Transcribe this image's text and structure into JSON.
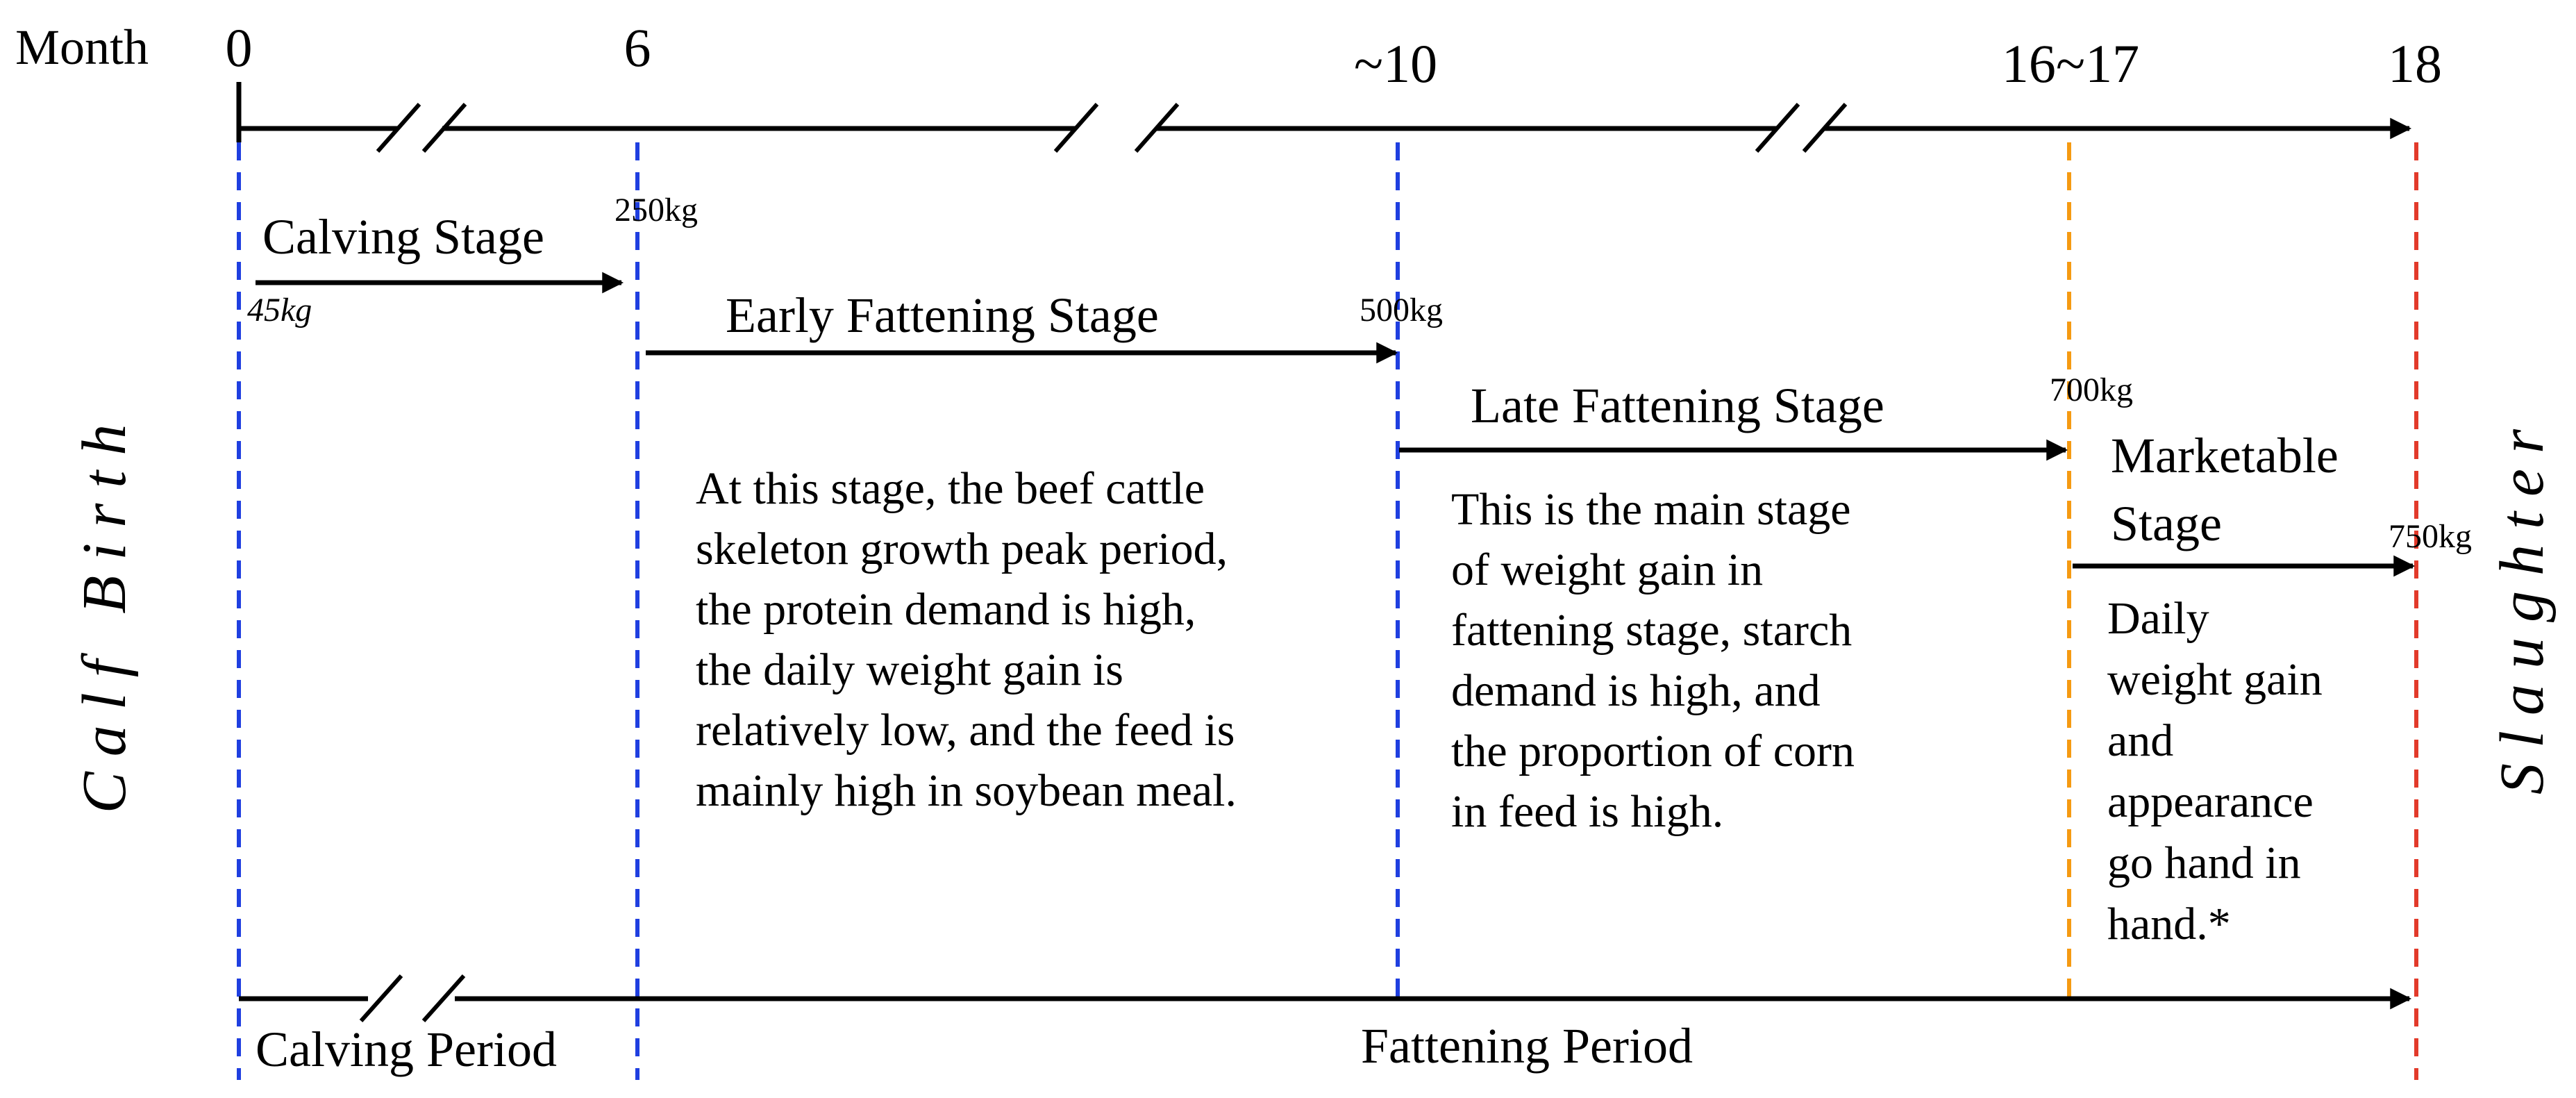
{
  "axis": {
    "label": "Month",
    "ticks": [
      "0",
      "6",
      "~10",
      "16~17",
      "18"
    ]
  },
  "stages": [
    {
      "label": "Calving Stage",
      "start_weight": "45kg",
      "end_weight": "250kg"
    },
    {
      "label": "Early Fattening Stage",
      "end_weight": "500kg"
    },
    {
      "label": "Late Fattening Stage",
      "end_weight": "700kg"
    },
    {
      "label_lines": [
        "Marketable",
        "Stage"
      ],
      "end_weight": "750kg"
    }
  ],
  "descriptions": {
    "early": [
      "At this stage, the beef cattle",
      "skeleton growth peak period,",
      "the protein demand is high,",
      "the daily weight gain is",
      "relatively low, and the feed is",
      "mainly high in soybean meal."
    ],
    "late": [
      "This is the main stage",
      "of weight gain in",
      "fattening stage, starch",
      "demand is high, and",
      "the proportion of corn",
      "in feed is high."
    ],
    "marketable": [
      "Daily",
      "weight gain",
      "and",
      "appearance",
      "go hand in",
      "hand.*"
    ]
  },
  "events": {
    "start": "Calf Birth",
    "end": "Slaughter"
  },
  "periods": {
    "calving": "Calving Period",
    "fattening": "Fattening Period"
  },
  "colors": {
    "blue_dashed": "#1f3fe0",
    "orange_dashed": "#f59a12",
    "red_dashed": "#e23a2a",
    "line": "#000000"
  }
}
